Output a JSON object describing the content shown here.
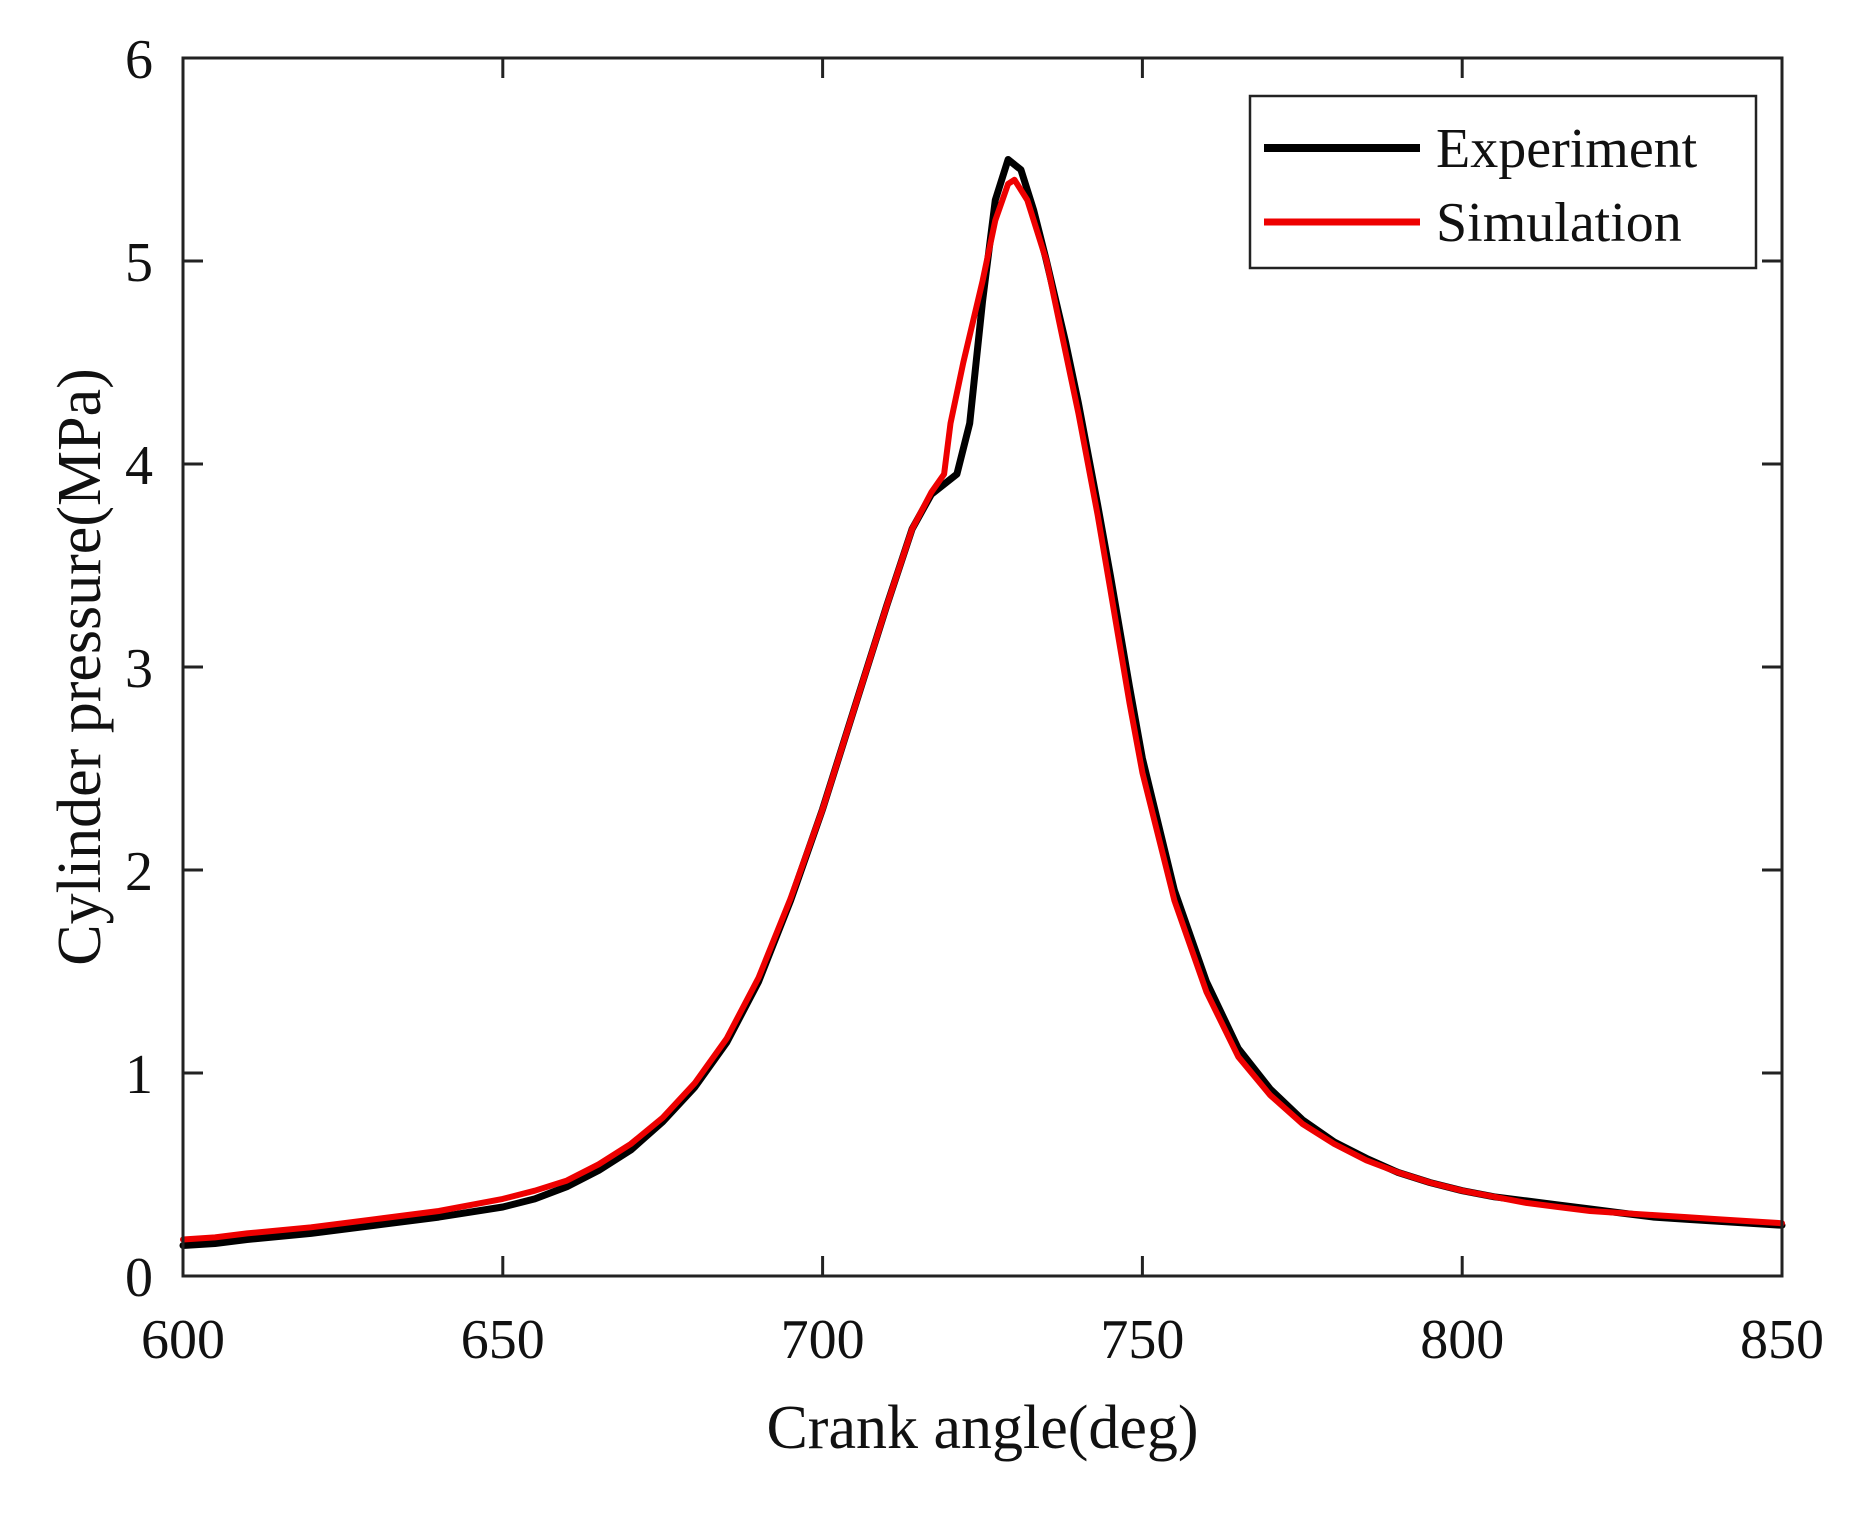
{
  "chart_data": {
    "type": "line",
    "title": "",
    "xlabel": "Crank angle(deg)",
    "ylabel": "Cylinder pressure(MPa)",
    "xlim": [
      600,
      850
    ],
    "ylim": [
      0,
      6
    ],
    "xticks": [
      600,
      650,
      700,
      750,
      800,
      850
    ],
    "xtick_labels": [
      "600",
      "650",
      "700",
      "750",
      "800",
      "850"
    ],
    "yticks": [
      0,
      1,
      2,
      3,
      4,
      5,
      6
    ],
    "ytick_labels": [
      "0",
      "1",
      "2",
      "3",
      "4",
      "5",
      "6"
    ],
    "grid": false,
    "legend_position": "top-right",
    "series": [
      {
        "name": "Experiment",
        "color": "#000000",
        "x": [
          600,
          605,
          610,
          620,
          630,
          640,
          650,
          655,
          660,
          665,
          670,
          675,
          680,
          685,
          690,
          695,
          700,
          705,
          710,
          714,
          717,
          719,
          721,
          723,
          725,
          727,
          729,
          731,
          733,
          735,
          738,
          740,
          743,
          745,
          748,
          750,
          755,
          760,
          765,
          770,
          775,
          780,
          785,
          790,
          795,
          800,
          805,
          810,
          815,
          820,
          825,
          830,
          835,
          840,
          845,
          850
        ],
        "values": [
          0.15,
          0.16,
          0.18,
          0.21,
          0.25,
          0.29,
          0.34,
          0.38,
          0.44,
          0.52,
          0.62,
          0.76,
          0.93,
          1.15,
          1.45,
          1.85,
          2.3,
          2.8,
          3.3,
          3.68,
          3.85,
          3.9,
          3.95,
          4.2,
          4.8,
          5.3,
          5.5,
          5.45,
          5.25,
          5.0,
          4.6,
          4.3,
          3.8,
          3.45,
          2.9,
          2.55,
          1.9,
          1.45,
          1.12,
          0.92,
          0.77,
          0.66,
          0.58,
          0.51,
          0.46,
          0.42,
          0.39,
          0.37,
          0.35,
          0.33,
          0.31,
          0.29,
          0.28,
          0.27,
          0.26,
          0.25
        ]
      },
      {
        "name": "Simulation",
        "color": "#ee0000",
        "x": [
          600,
          605,
          610,
          620,
          630,
          640,
          650,
          655,
          660,
          665,
          670,
          675,
          680,
          685,
          690,
          695,
          700,
          705,
          710,
          714,
          717,
          719,
          720,
          722,
          725,
          727,
          729,
          730,
          732,
          735,
          738,
          740,
          743,
          745,
          748,
          750,
          755,
          760,
          765,
          770,
          775,
          780,
          785,
          790,
          795,
          800,
          805,
          810,
          815,
          820,
          825,
          830,
          835,
          840,
          845,
          850
        ],
        "values": [
          0.18,
          0.19,
          0.21,
          0.24,
          0.28,
          0.32,
          0.38,
          0.42,
          0.47,
          0.55,
          0.65,
          0.78,
          0.95,
          1.17,
          1.47,
          1.86,
          2.3,
          2.8,
          3.3,
          3.68,
          3.86,
          3.95,
          4.2,
          4.5,
          4.9,
          5.2,
          5.38,
          5.4,
          5.3,
          5.0,
          4.55,
          4.25,
          3.75,
          3.38,
          2.82,
          2.48,
          1.85,
          1.4,
          1.08,
          0.89,
          0.75,
          0.65,
          0.57,
          0.51,
          0.46,
          0.42,
          0.39,
          0.36,
          0.34,
          0.32,
          0.31,
          0.3,
          0.29,
          0.28,
          0.27,
          0.26
        ]
      }
    ]
  }
}
